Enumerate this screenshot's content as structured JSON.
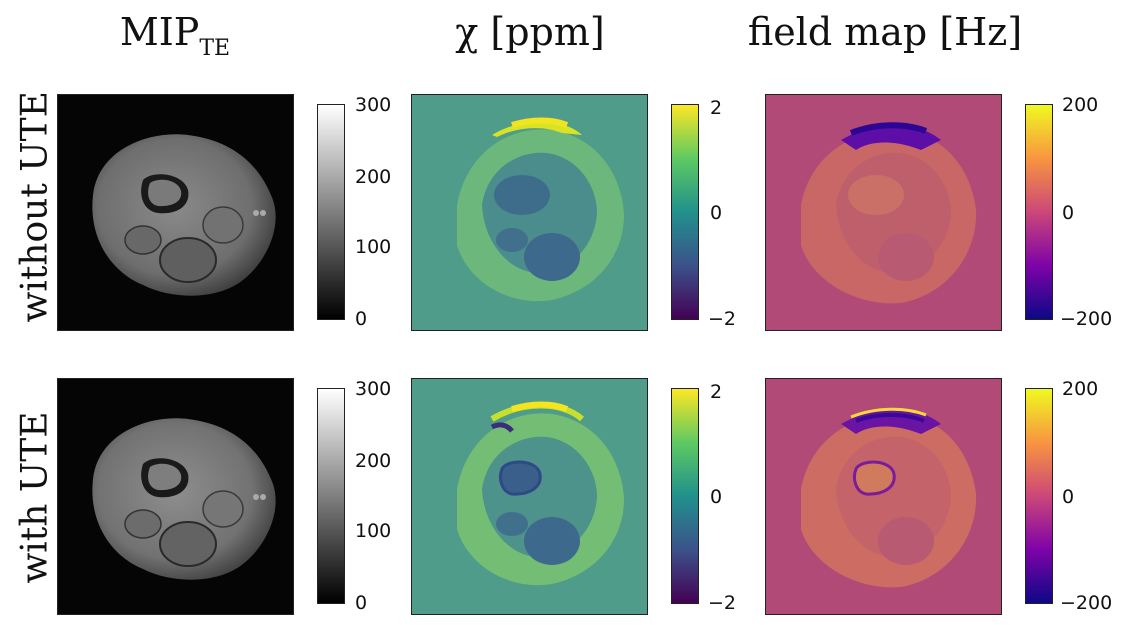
{
  "columns": {
    "mip": {
      "main": "MIP",
      "sub": "TE"
    },
    "chi": "χ [ppm]",
    "field": "field map [Hz]"
  },
  "rows": {
    "without": "without UTE",
    "with": "with UTE"
  },
  "colorbars": {
    "mip": {
      "top": "300",
      "upper": "200",
      "lower": "100",
      "bottom": "0",
      "colormap": "gray"
    },
    "chi": {
      "top": "2",
      "mid": "0",
      "bottom": "−2",
      "colormap": "viridis"
    },
    "field": {
      "top": "200",
      "mid": "0",
      "bottom": "−200",
      "colormap": "plasma"
    }
  }
}
